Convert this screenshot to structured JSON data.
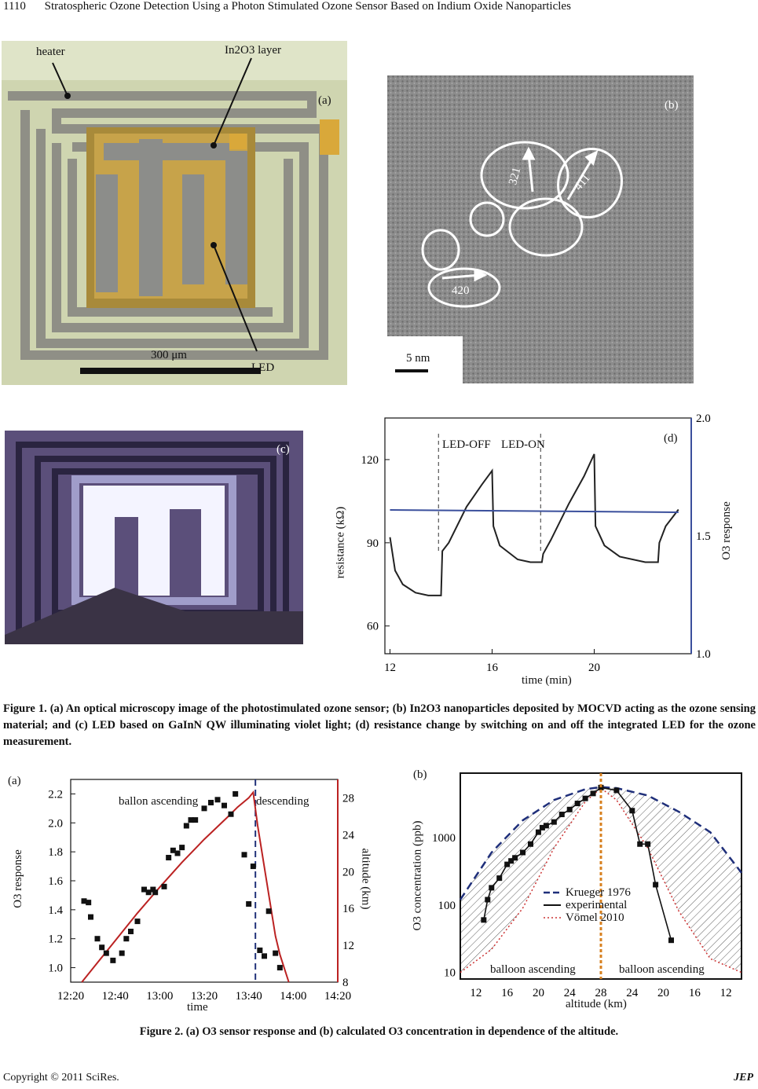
{
  "header": {
    "page_number": "1110",
    "running_title": "Stratospheric Ozone Detection Using a Photon Stimulated Ozone Sensor Based on Indium Oxide Nanoparticles"
  },
  "figure1": {
    "panel_a": {
      "tag": "(a)",
      "heater": "heater",
      "layer": "In2O3 layer",
      "scale": "300 μm",
      "led": "LED"
    },
    "panel_b": {
      "tag": "(b)",
      "scale": "5 nm",
      "planes": [
        "321",
        "411",
        "420"
      ]
    },
    "panel_c": {
      "tag": "(c)"
    },
    "panel_d": {
      "tag": "(d)",
      "led_off": "LED-OFF",
      "led_on": "LED-ON",
      "xlabel": "time (min)",
      "ylabel_left": "resistance (kΩ)",
      "ylabel_right": "O3 response",
      "x_ticks": [
        "12",
        "16",
        "20"
      ],
      "y_left_ticks": [
        "60",
        "90",
        "120"
      ],
      "y_right_ticks": [
        "1.0",
        "1.5",
        "2.0"
      ]
    },
    "caption": "Figure 1. (a) An optical microscopy image of the photostimulated ozone sensor; (b) In2O3 nanoparticles deposited by MOCVD acting as the ozone sensing material; and (c) LED based on GaInN QW illuminating violet light; (d) resistance change by switching on and off the integrated LED for the ozone measurement."
  },
  "figure2": {
    "panel_a": {
      "tag": "(a)",
      "ascending": "ballon ascending",
      "descending": "descending",
      "xlabel": "time",
      "ylabel_left": "O3 response",
      "ylabel_right": "altitude (km)"
    },
    "panel_b": {
      "tag": "(b)",
      "ylabel": "O3 concentration (ppb)",
      "xlabel": "altitude (km)",
      "ascending": "balloon ascending",
      "descending": "balloon ascending",
      "legend": [
        "Krueger 1976",
        "experimental",
        "Vömel 2010"
      ]
    },
    "caption": "Figure 2. (a) O3 sensor response and (b) calculated O3 concentration in dependence of the altitude."
  },
  "chart_data": [
    {
      "type": "line",
      "id": "fig1d",
      "xlabel": "time (min)",
      "ylabel": "resistance (kΩ)",
      "y2label": "O3 response",
      "xlim": [
        11.8,
        23.8
      ],
      "ylim": [
        50,
        135
      ],
      "y2lim": [
        1.0,
        2.0
      ],
      "x_ticks": [
        12,
        16,
        20
      ],
      "y_ticks": [
        60,
        90,
        120
      ],
      "y2_ticks": [
        1.0,
        1.5,
        2.0
      ],
      "vlines": [
        13.9,
        17.9
      ],
      "series": [
        {
          "kind": "resistance",
          "x": [
            12.0,
            12.2,
            12.5,
            13.0,
            13.5,
            14.0,
            14.05,
            14.3,
            15.0,
            15.6,
            16.0,
            16.05,
            16.3,
            17.0,
            17.5,
            17.95,
            18.0,
            18.3,
            19.0,
            19.6,
            20.0,
            20.05,
            20.4,
            21.0,
            22.0,
            22.5,
            22.55,
            22.8,
            23.3
          ],
          "y": [
            92,
            80,
            75,
            72,
            71,
            71,
            87,
            90,
            103,
            111,
            116,
            96,
            89,
            84,
            83,
            83,
            86,
            91,
            104,
            114,
            122,
            96,
            89,
            85,
            83,
            83,
            90,
            96,
            102
          ]
        },
        {
          "kind": "response",
          "x": [
            12.0,
            23.3
          ],
          "y": [
            1.61,
            1.6
          ]
        }
      ]
    },
    {
      "type": "scatter",
      "id": "fig2a",
      "xlabel": "time",
      "ylabel": "O3 response",
      "y2label": "altitude (km)",
      "x_ticks": [
        "12:20",
        "12:40",
        "13:00",
        "13:20",
        "13:40",
        "14:00",
        "14:20"
      ],
      "xlim": [
        0,
        120
      ],
      "ylim": [
        0.9,
        2.3
      ],
      "y_ticks": [
        1.0,
        1.2,
        1.4,
        1.6,
        1.8,
        2.0,
        2.2
      ],
      "y2lim": [
        8,
        30
      ],
      "y2_ticks": [
        8,
        12,
        16,
        20,
        24,
        28
      ],
      "vline": 83,
      "series": [
        {
          "name": "O3 response",
          "x": [
            6,
            8,
            9,
            12,
            14,
            16,
            19,
            23,
            25,
            27,
            30,
            33,
            35,
            37,
            38,
            42,
            44,
            46,
            48,
            50,
            52,
            54,
            56,
            60,
            63,
            66,
            69,
            72,
            74,
            78,
            80,
            82,
            85,
            87,
            89,
            92,
            94
          ],
          "y": [
            1.46,
            1.45,
            1.35,
            1.2,
            1.14,
            1.1,
            1.05,
            1.1,
            1.2,
            1.25,
            1.32,
            1.54,
            1.52,
            1.54,
            1.52,
            1.56,
            1.76,
            1.81,
            1.79,
            1.83,
            1.98,
            2.02,
            2.02,
            2.1,
            2.14,
            2.16,
            2.12,
            2.06,
            2.2,
            1.78,
            1.44,
            1.7,
            1.12,
            1.08,
            1.39,
            1.1,
            1.0
          ]
        },
        {
          "name": "altitude",
          "x": [
            5,
            10,
            20,
            30,
            40,
            50,
            60,
            70,
            75,
            80,
            82,
            84,
            86,
            88,
            90,
            92,
            94,
            96,
            98
          ],
          "y": [
            8,
            9.5,
            12.5,
            15.5,
            18.3,
            21,
            23.5,
            25.8,
            27,
            28,
            28.6,
            25,
            22,
            19,
            16,
            13,
            11,
            9.5,
            8
          ]
        }
      ]
    },
    {
      "type": "scatter",
      "id": "fig2b",
      "xlabel": "altitude (km)",
      "ylabel": "O3 concentration (ppb)",
      "x_ticks": [
        "12",
        "16",
        "20",
        "24",
        "28",
        "24",
        "20",
        "16",
        "12"
      ],
      "y_ticks": [
        "10",
        "100",
        "1000"
      ],
      "ylog": true,
      "ylim": [
        8,
        9000
      ],
      "series": [
        {
          "name": "experimental",
          "x": [
            13,
            13.5,
            14,
            15,
            16,
            16.5,
            17,
            18,
            19,
            20,
            20.5,
            21,
            22,
            23,
            24,
            25,
            26,
            27,
            28,
            30,
            32,
            33,
            34,
            35,
            37
          ],
          "y": [
            60,
            120,
            180,
            250,
            400,
            450,
            500,
            600,
            800,
            1200,
            1400,
            1500,
            1700,
            2200,
            2600,
            3200,
            3800,
            4500,
            5500,
            5000,
            2500,
            800,
            800,
            200,
            30
          ]
        },
        {
          "name": "Krueger 1976",
          "x": [
            10,
            14,
            18,
            22,
            26,
            28,
            30,
            34,
            38,
            42,
            46
          ],
          "y": [
            120,
            600,
            1800,
            3600,
            5200,
            5600,
            5400,
            4200,
            2400,
            1200,
            300
          ]
        },
        {
          "name": "Vömel 2010",
          "x": [
            10,
            14,
            18,
            22,
            26,
            28,
            30,
            34,
            38,
            42,
            46
          ],
          "y": [
            10,
            22,
            90,
            700,
            3400,
            5400,
            3600,
            700,
            80,
            16,
            10
          ]
        }
      ]
    }
  ]
}
